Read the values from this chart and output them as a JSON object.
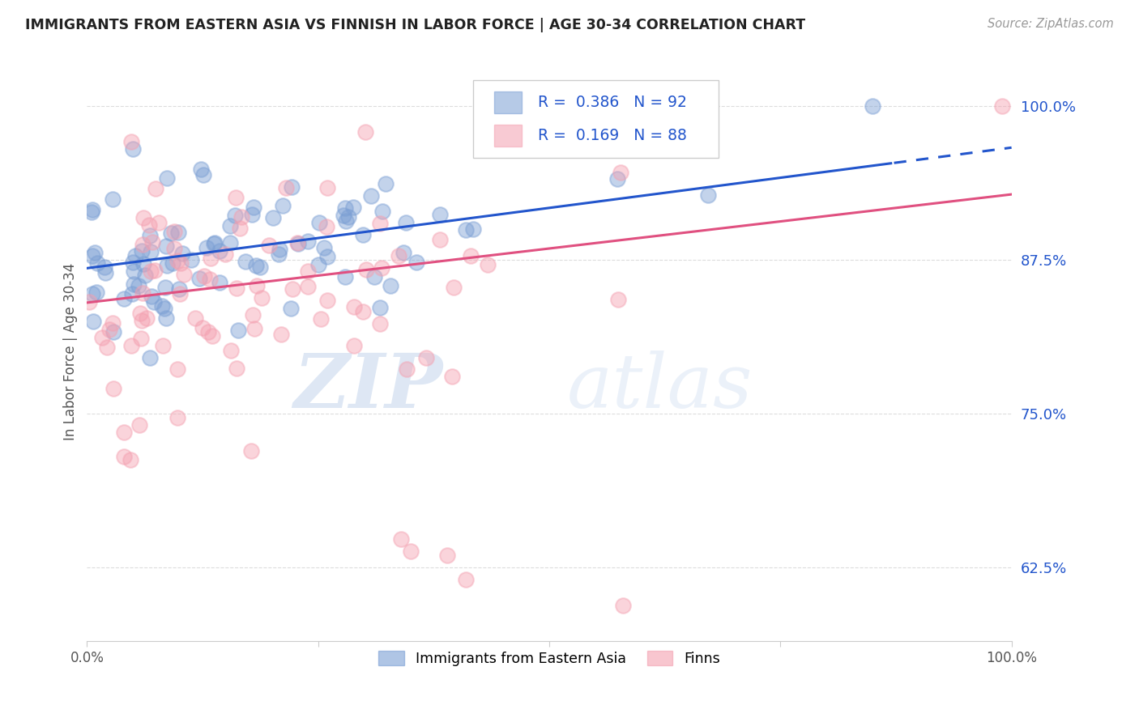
{
  "title": "IMMIGRANTS FROM EASTERN ASIA VS FINNISH IN LABOR FORCE | AGE 30-34 CORRELATION CHART",
  "source": "Source: ZipAtlas.com",
  "ylabel": "In Labor Force | Age 30-34",
  "xlim": [
    0.0,
    1.0
  ],
  "ylim": [
    0.565,
    1.035
  ],
  "yticks": [
    0.625,
    0.75,
    0.875,
    1.0
  ],
  "ytick_labels": [
    "62.5%",
    "75.0%",
    "87.5%",
    "100.0%"
  ],
  "blue_R": 0.386,
  "blue_N": 92,
  "pink_R": 0.169,
  "pink_N": 88,
  "blue_color": "#7b9fd4",
  "pink_color": "#f4a0b0",
  "blue_line_color": "#2255cc",
  "pink_line_color": "#e05080",
  "legend_text_color": "#2255cc",
  "background_color": "#ffffff",
  "grid_color": "#dddddd",
  "watermark_zip": "ZIP",
  "watermark_atlas": "atlas",
  "blue_intercept": 0.868,
  "blue_slope": 0.098,
  "pink_intercept": 0.84,
  "pink_slope": 0.088
}
